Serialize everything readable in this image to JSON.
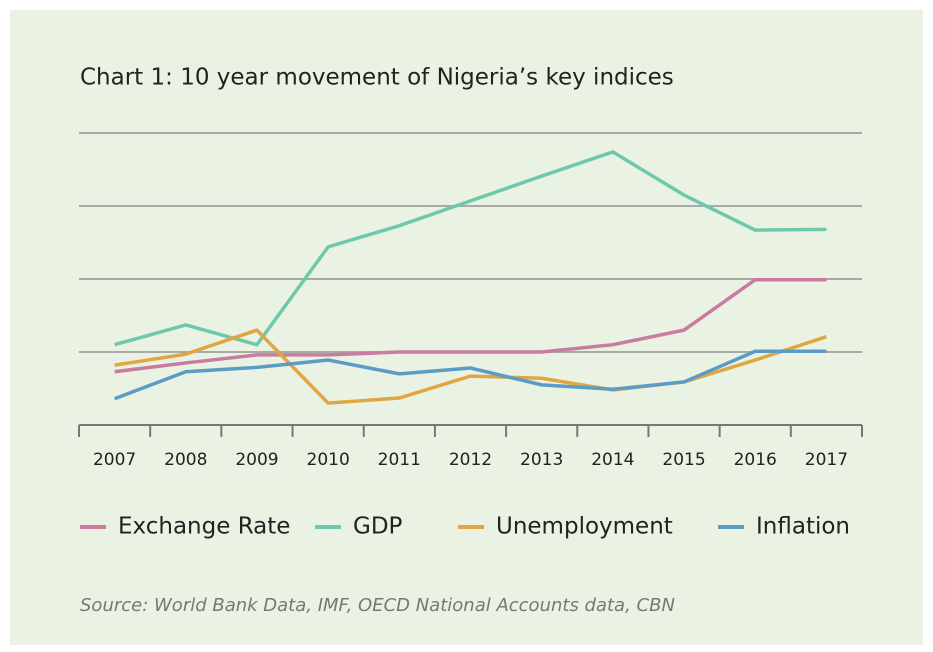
{
  "chart_data": {
    "type": "line",
    "title": "Chart 1: 10 year movement of Nigeria’s key indices",
    "source": "Source: World Bank Data, IMF, OECD National Accounts data, CBN",
    "categories": [
      "2007",
      "2008",
      "2009",
      "2010",
      "2011",
      "2012",
      "2013",
      "2014",
      "2015",
      "2016",
      "2017"
    ],
    "ylim": [
      0,
      400
    ],
    "yticks": [
      100,
      200,
      300,
      400
    ],
    "grid": true,
    "series": [
      {
        "name": "Exchange Rate",
        "color": "#c97ba0",
        "values": [
          73,
          85,
          96,
          96,
          100,
          100,
          100,
          110,
          130,
          199,
          199
        ]
      },
      {
        "name": "GDP",
        "color": "#6fc8ad",
        "values": [
          110,
          137,
          110,
          244,
          273,
          307,
          341,
          374,
          315,
          267,
          268
        ]
      },
      {
        "name": "Unemployment",
        "color": "#e0a640",
        "values": [
          82,
          97,
          130,
          30,
          37,
          67,
          64,
          48,
          59,
          89,
          121
        ]
      },
      {
        "name": "Inflation",
        "color": "#5b9bc6",
        "values": [
          36,
          73,
          79,
          89,
          70,
          78,
          55,
          49,
          59,
          101,
          101
        ]
      }
    ]
  }
}
